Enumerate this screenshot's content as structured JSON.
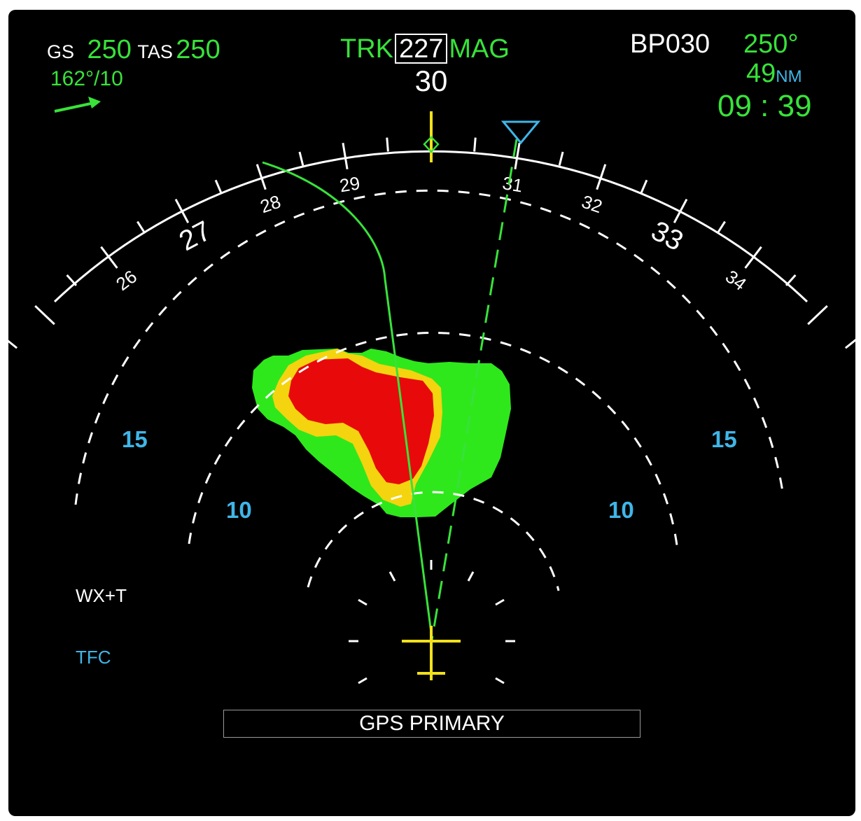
{
  "speeds": {
    "gs_label": "GS",
    "gs_value": "250",
    "tas_label": "TAS",
    "tas_value": "250"
  },
  "wind": {
    "text": "162°/10"
  },
  "track": {
    "prefix": "TRK",
    "value": "227",
    "suffix": "MAG"
  },
  "waypoint": {
    "name": "BP030",
    "bearing": "250°",
    "distance": "49",
    "distance_unit": "NM",
    "eta": "09 : 39"
  },
  "compass": {
    "labels": [
      "26",
      "27",
      "28",
      "29",
      "30",
      "31",
      "32",
      "33",
      "34"
    ]
  },
  "range_rings": {
    "inner_left": "10",
    "inner_right": "10",
    "outer_left": "15",
    "outer_right": "15"
  },
  "modes": {
    "wx": "WX+T",
    "tfc": "TFC"
  },
  "status": {
    "nav_source": "GPS PRIMARY"
  },
  "colors": {
    "background": "#000000",
    "green": "#38e23a",
    "cyan": "#3fb6e8",
    "white": "#ffffff",
    "yellow": "#f2e01b",
    "wx_green": "#2ee81c",
    "wx_yellow": "#f4d40e",
    "wx_red": "#e80a0a"
  }
}
